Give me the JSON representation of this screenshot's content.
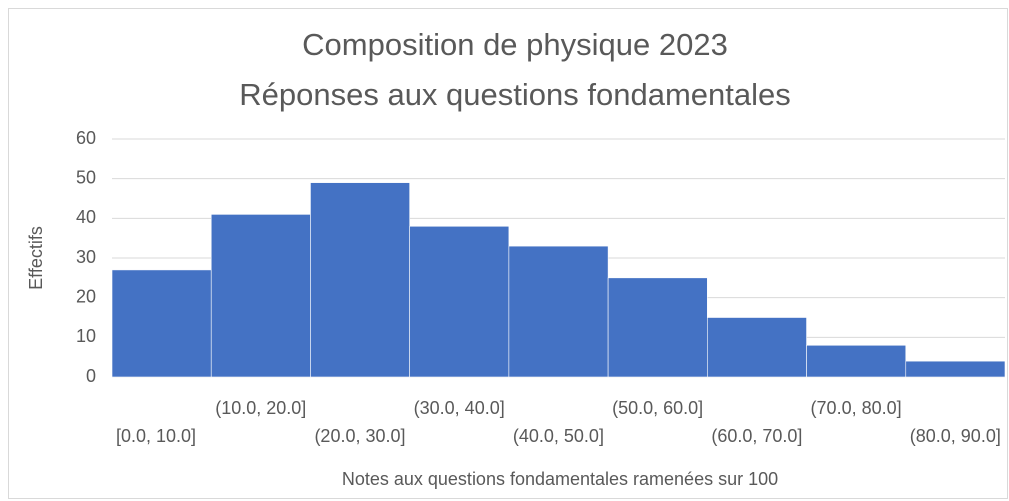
{
  "chart_data": {
    "type": "histogram",
    "title": [
      "Composition de physique 2023",
      "Réponses aux questions fondamentales"
    ],
    "x_label": "Notes aux questions fondamentales ramenées sur 100",
    "y_label": "Effectifs",
    "categories": [
      "[0.0, 10.0]",
      "(10.0, 20.0]",
      "(20.0, 30.0]",
      "(30.0, 40.0]",
      "(40.0, 50.0]",
      "(50.0, 60.0]",
      "(60.0, 70.0]",
      "(70.0, 80.0]",
      "(80.0, 90.0]"
    ],
    "values": [
      27,
      41,
      49,
      38,
      33,
      25,
      15,
      8,
      4
    ],
    "color": "#4472c4",
    "ylim": [
      0,
      60
    ],
    "yticks": [
      0,
      10,
      20,
      30,
      40,
      50,
      60
    ],
    "grid": true
  }
}
